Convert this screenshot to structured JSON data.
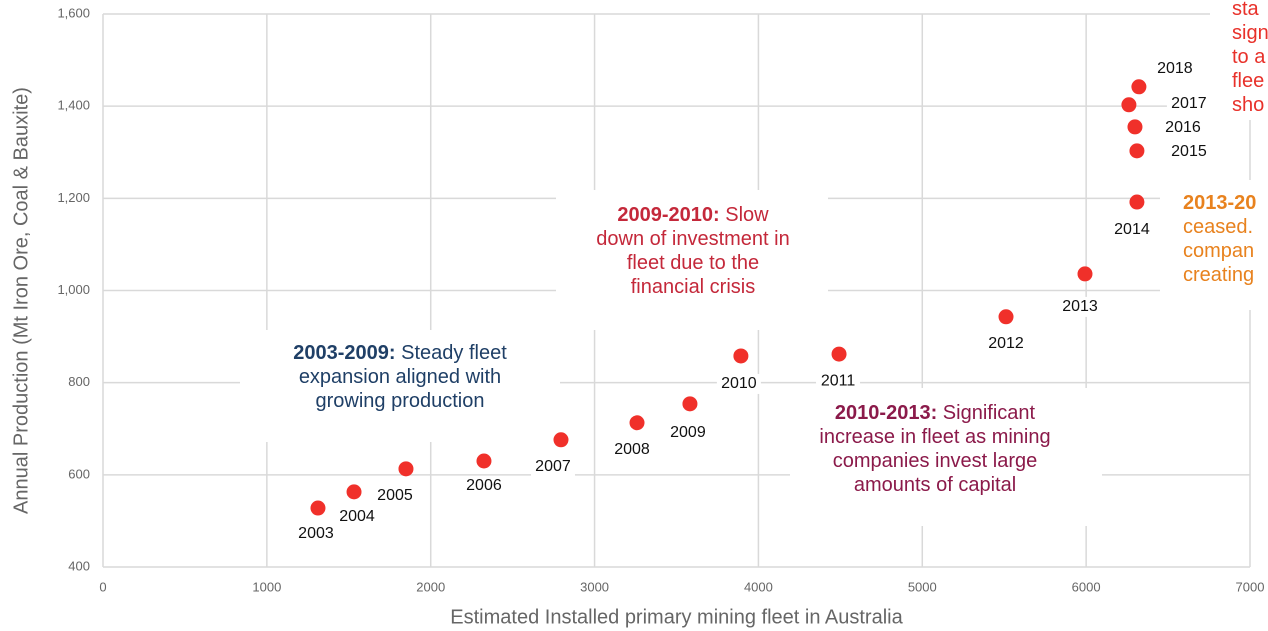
{
  "chart_data": {
    "type": "scatter",
    "x_label": "Estimated Installed primary mining fleet in Australia",
    "y_label": "Annual Production (Mt Iron Ore, Coal & Bauxite)",
    "xlim": [
      0,
      7000
    ],
    "xticks": [
      0,
      1000,
      2000,
      3000,
      4000,
      5000,
      6000,
      7000
    ],
    "ylim": [
      400,
      1600
    ],
    "yticks": [
      {
        "value": 400,
        "label": "400"
      },
      {
        "value": 600,
        "label": "600"
      },
      {
        "value": 800,
        "label": "800"
      },
      {
        "value": 1000,
        "label": "1,000"
      },
      {
        "value": 1200,
        "label": "1,200"
      },
      {
        "value": 1400,
        "label": "1,400"
      },
      {
        "value": 1600,
        "label": "1,600"
      }
    ],
    "grid": true,
    "color": "#f0302a",
    "labels": [
      "2003",
      "2004",
      "2005",
      "2006",
      "2007",
      "2008",
      "2009",
      "2010",
      "2011",
      "2012",
      "2013",
      "2014",
      "2015",
      "2016",
      "2017",
      "2018"
    ],
    "x": [
      1312,
      1532,
      1849,
      2325,
      2795,
      3259,
      3582,
      3893,
      4492,
      5511,
      5993,
      6310,
      6310,
      6298,
      6261,
      6322
    ],
    "y": [
      528,
      563,
      613,
      630,
      676,
      713,
      754,
      858,
      862,
      943,
      1036,
      1192,
      1303,
      1355,
      1403,
      1442
    ],
    "annotations": [
      {
        "bold": "2003-2009:",
        "lines": [
          " Steady fleet",
          "expansion aligned with",
          "growing production"
        ],
        "color": "#1f3f66"
      },
      {
        "bold": "2009-2010:",
        "lines": [
          " Slow",
          "down of investment in",
          "fleet due to the",
          "financial crisis"
        ],
        "color": "#c4283a"
      },
      {
        "bold": "2010-2013:",
        "lines": [
          " Significant",
          "increase in fleet as mining",
          "companies invest large",
          "amounts of capital"
        ],
        "color": "#8b1a4a"
      },
      {
        "bold": "2013-20",
        "lines": [
          "",
          "ceased.",
          "compan",
          "creating"
        ],
        "color": "#e8821e"
      },
      {
        "bold": "",
        "lines": [
          "sta",
          "sign",
          "to a",
          "flee",
          "sho"
        ],
        "color": "#e8312a"
      }
    ]
  }
}
